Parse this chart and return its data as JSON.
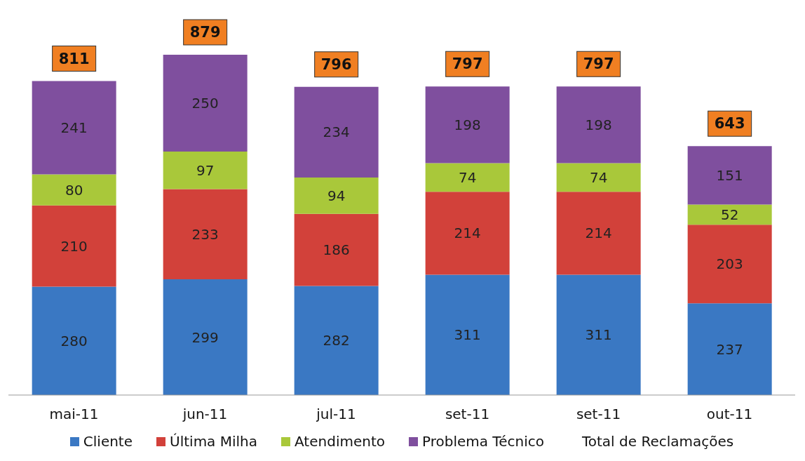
{
  "chart_data": {
    "type": "bar",
    "stacked": true,
    "data_labels": true,
    "legend": "bottom",
    "grid": false,
    "categories": [
      "mai-11",
      "jun-11",
      "jul-11",
      "set-11",
      "set-11",
      "out-11"
    ],
    "series": [
      {
        "name": "Cliente",
        "color": "#3a78c3",
        "values": [
          280,
          299,
          282,
          311,
          311,
          237
        ]
      },
      {
        "name": "Última Milha",
        "color": "#d2413a",
        "values": [
          210,
          233,
          186,
          214,
          214,
          203
        ]
      },
      {
        "name": "Atendimento",
        "color": "#a9c83a",
        "values": [
          80,
          97,
          94,
          74,
          74,
          52
        ]
      },
      {
        "name": "Problema Técnico",
        "color": "#7f4f9e",
        "values": [
          241,
          250,
          234,
          198,
          198,
          151
        ]
      }
    ],
    "totals": [
      "811",
      "879",
      "796",
      "797",
      "797",
      "643"
    ],
    "annotations": [
      "Total de Reclamações"
    ]
  }
}
